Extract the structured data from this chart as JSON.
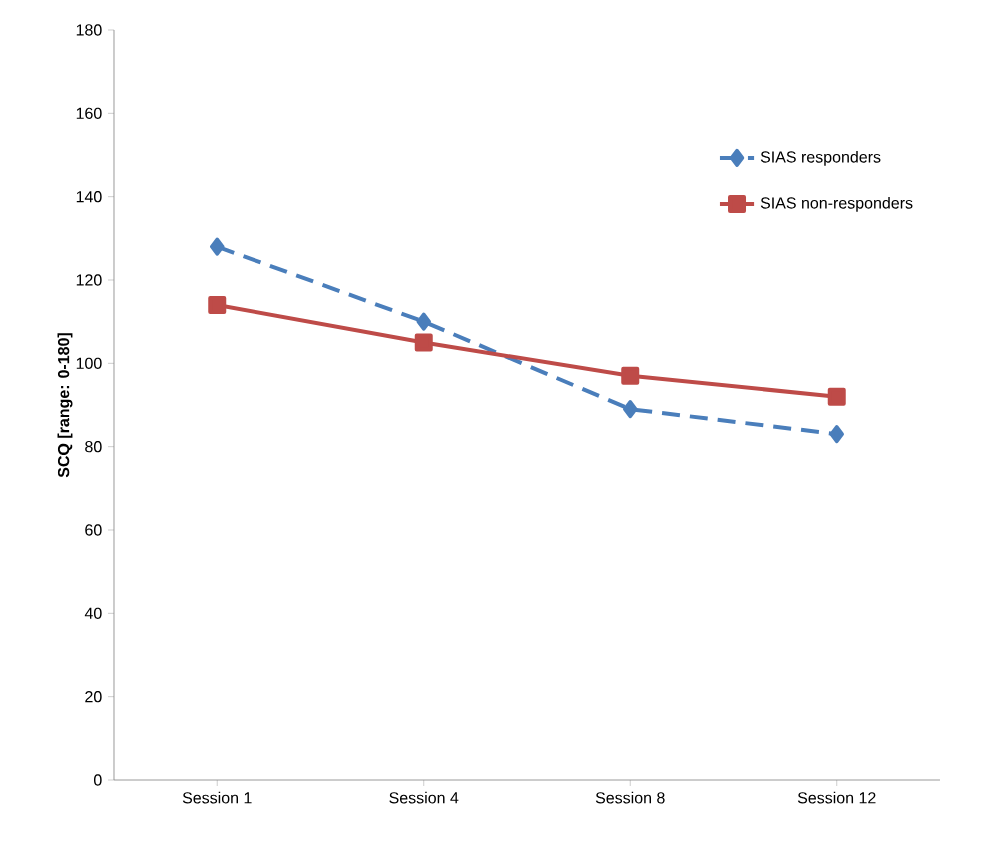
{
  "chart_data": {
    "type": "line",
    "ylabel": "SCQ  [range: 0-180]",
    "categories": [
      "Session 1",
      "Session 4",
      "Session 8",
      "Session 12"
    ],
    "ylim": [
      0,
      180
    ],
    "yticks": [
      0,
      20,
      40,
      60,
      80,
      100,
      120,
      140,
      160,
      180
    ],
    "grid": false,
    "legend": "top right",
    "series": [
      {
        "name": "SIAS responders",
        "color": "#4a7ebb",
        "values": [
          128,
          110,
          89,
          83
        ],
        "marker": "diamond",
        "line_style": "dashed"
      },
      {
        "name": "SIAS non-responders",
        "color": "#be4b48",
        "values": [
          114,
          105,
          97,
          92
        ],
        "marker": "square",
        "line_style": "solid"
      }
    ]
  }
}
